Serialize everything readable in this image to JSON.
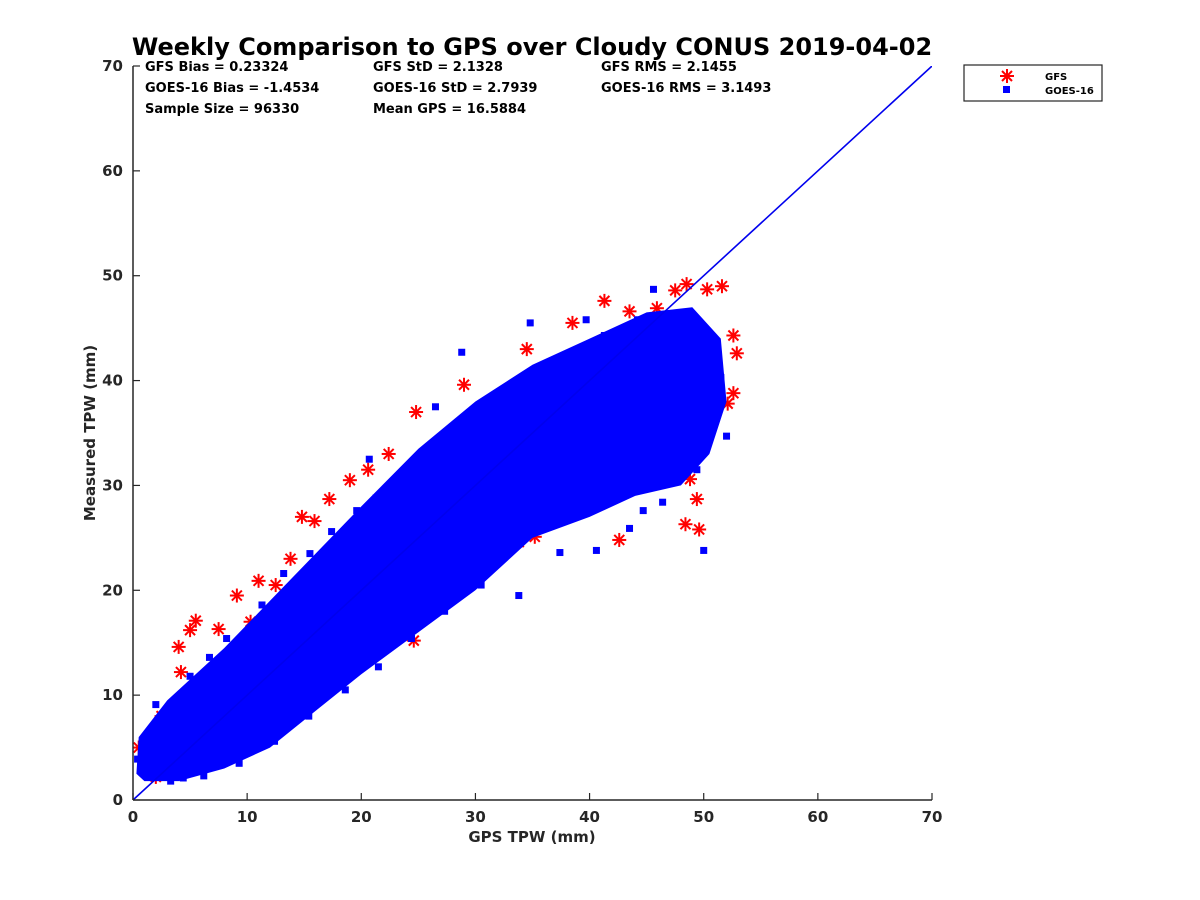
{
  "chart_data": {
    "type": "scatter",
    "title": "Weekly Comparison to GPS over Cloudy CONUS 2019-04-02",
    "xlabel": "GPS TPW (mm)",
    "ylabel": "Measured TPW (mm)",
    "xlim": [
      0,
      70
    ],
    "ylim": [
      0,
      70
    ],
    "xticks": [
      "0",
      "10",
      "20",
      "30",
      "40",
      "50",
      "60",
      "70"
    ],
    "yticks": [
      "0",
      "10",
      "20",
      "30",
      "40",
      "50",
      "60",
      "70"
    ],
    "grid": false,
    "legend_position": "outside top-right",
    "stats": {
      "gfs_bias": "GFS Bias = 0.23324",
      "goes_bias": "GOES-16 Bias = -1.4534",
      "sample_size": "Sample Size = 96330",
      "gfs_std": "GFS StD = 2.1328",
      "goes_std": "GOES-16 StD = 2.7939",
      "mean_gps": "Mean GPS = 16.5884",
      "gfs_rms": "GFS RMS = 2.1455",
      "goes_rms": "GOES-16 RMS = 3.1493"
    },
    "reference_line": {
      "x": [
        0,
        70
      ],
      "y": [
        0,
        70
      ],
      "color": "#0000ee"
    },
    "series": [
      {
        "name": "GFS",
        "marker": "asterisk",
        "color": "#ff0000",
        "points": [
          [
            0.5,
            5.0
          ],
          [
            1.2,
            5.6
          ],
          [
            2.5,
            8.0
          ],
          [
            4.0,
            14.6
          ],
          [
            4.2,
            12.2
          ],
          [
            5.0,
            16.2
          ],
          [
            5.5,
            17.1
          ],
          [
            7.5,
            16.3
          ],
          [
            9.1,
            19.5
          ],
          [
            10.3,
            17.0
          ],
          [
            11.0,
            20.9
          ],
          [
            12.5,
            20.5
          ],
          [
            13.8,
            23.0
          ],
          [
            14.8,
            27.0
          ],
          [
            15.9,
            26.6
          ],
          [
            17.2,
            28.7
          ],
          [
            19.0,
            30.5
          ],
          [
            20.6,
            31.5
          ],
          [
            22.4,
            33.0
          ],
          [
            24.8,
            37.0
          ],
          [
            29.0,
            39.6
          ],
          [
            34.5,
            43.0
          ],
          [
            38.5,
            45.5
          ],
          [
            41.3,
            47.6
          ],
          [
            43.5,
            46.6
          ],
          [
            45.9,
            46.9
          ],
          [
            47.5,
            48.6
          ],
          [
            48.5,
            49.2
          ],
          [
            50.3,
            48.7
          ],
          [
            51.6,
            49.0
          ],
          [
            52.6,
            44.3
          ],
          [
            52.9,
            42.6
          ],
          [
            52.6,
            38.8
          ],
          [
            52.1,
            37.8
          ],
          [
            50.0,
            33.8
          ],
          [
            48.8,
            30.6
          ],
          [
            48.4,
            26.3
          ],
          [
            49.6,
            25.8
          ],
          [
            49.4,
            28.7
          ],
          [
            42.6,
            24.8
          ],
          [
            33.8,
            24.6
          ],
          [
            35.2,
            25.1
          ],
          [
            26.6,
            21.5
          ],
          [
            24.5,
            20.3
          ],
          [
            22.0,
            18.2
          ],
          [
            18.5,
            14.6
          ],
          [
            24.6,
            15.2
          ],
          [
            12.0,
            10.4
          ],
          [
            8.0,
            6.4
          ],
          [
            2.0,
            2.2
          ],
          [
            4.5,
            3.0
          ],
          [
            3.3,
            2.6
          ],
          [
            30.0,
            23.8
          ],
          [
            45.0,
            36.0
          ],
          [
            47.2,
            37.2
          ],
          [
            15.5,
            21.0
          ],
          [
            27.3,
            33.6
          ],
          [
            37.0,
            36.8
          ],
          [
            40.5,
            41.5
          ],
          [
            44.1,
            40.2
          ],
          [
            46.5,
            42.6
          ]
        ]
      },
      {
        "name": "GOES-16",
        "marker": "square",
        "color": "#0000ff",
        "points": [
          [
            0.4,
            3.9
          ],
          [
            1.3,
            3.1
          ],
          [
            2.4,
            3.7
          ],
          [
            3.5,
            4.0
          ],
          [
            4.3,
            5.9
          ],
          [
            5.4,
            4.9
          ],
          [
            6.5,
            6.8
          ],
          [
            7.6,
            7.4
          ],
          [
            8.3,
            9.0
          ],
          [
            9.7,
            9.3
          ],
          [
            10.5,
            11.2
          ],
          [
            11.6,
            11.1
          ],
          [
            12.4,
            13.0
          ],
          [
            13.6,
            12.9
          ],
          [
            14.4,
            14.8
          ],
          [
            15.7,
            15.0
          ],
          [
            16.5,
            16.8
          ],
          [
            17.6,
            16.8
          ],
          [
            18.4,
            18.8
          ],
          [
            19.5,
            18.6
          ],
          [
            20.6,
            20.7
          ],
          [
            21.4,
            21.0
          ],
          [
            22.6,
            22.5
          ],
          [
            23.3,
            23.0
          ],
          [
            24.5,
            24.3
          ],
          [
            25.7,
            24.4
          ],
          [
            26.4,
            26.3
          ],
          [
            27.6,
            26.6
          ],
          [
            28.4,
            28.0
          ],
          [
            29.6,
            28.2
          ],
          [
            30.5,
            29.6
          ],
          [
            31.3,
            30.0
          ],
          [
            32.6,
            31.3
          ],
          [
            33.4,
            31.5
          ],
          [
            34.5,
            32.3
          ],
          [
            35.6,
            32.6
          ],
          [
            36.3,
            33.7
          ],
          [
            37.5,
            33.5
          ],
          [
            38.6,
            34.9
          ],
          [
            39.5,
            35.0
          ],
          [
            40.4,
            35.8
          ],
          [
            41.6,
            36.2
          ],
          [
            42.4,
            37.2
          ],
          [
            43.5,
            37.0
          ],
          [
            44.6,
            38.1
          ],
          [
            45.4,
            38.0
          ],
          [
            46.5,
            39.0
          ],
          [
            47.6,
            38.8
          ],
          [
            48.4,
            39.8
          ],
          [
            49.5,
            40.0
          ],
          [
            50.5,
            39.0
          ],
          [
            51.5,
            40.3
          ],
          [
            6.7,
            13.6
          ],
          [
            8.2,
            15.4
          ],
          [
            11.3,
            18.6
          ],
          [
            13.2,
            21.6
          ],
          [
            15.5,
            23.5
          ],
          [
            17.4,
            25.6
          ],
          [
            19.6,
            27.6
          ],
          [
            21.3,
            28.8
          ],
          [
            23.6,
            30.2
          ],
          [
            26.5,
            32.7
          ],
          [
            29.2,
            34.5
          ],
          [
            32.5,
            37.7
          ],
          [
            35.2,
            39.6
          ],
          [
            38.2,
            42.2
          ],
          [
            41.3,
            44.3
          ],
          [
            44.2,
            45.8
          ],
          [
            46.6,
            45.6
          ],
          [
            48.3,
            45.1
          ],
          [
            3.3,
            1.8
          ],
          [
            6.2,
            2.3
          ],
          [
            9.3,
            3.5
          ],
          [
            12.4,
            5.6
          ],
          [
            15.4,
            8.0
          ],
          [
            18.6,
            10.5
          ],
          [
            21.5,
            12.7
          ],
          [
            24.4,
            15.4
          ],
          [
            27.3,
            18.0
          ],
          [
            30.5,
            20.5
          ],
          [
            33.8,
            19.5
          ],
          [
            37.4,
            23.6
          ],
          [
            40.6,
            23.8
          ],
          [
            43.5,
            25.9
          ],
          [
            46.4,
            28.4
          ],
          [
            49.4,
            31.5
          ],
          [
            50.0,
            23.8
          ],
          [
            44.7,
            27.6
          ],
          [
            52.0,
            34.7
          ],
          [
            45.6,
            48.7
          ],
          [
            28.8,
            42.7
          ],
          [
            20.7,
            32.5
          ],
          [
            4.4,
            2.1
          ],
          [
            2.0,
            9.1
          ],
          [
            5.0,
            11.8
          ],
          [
            26.5,
            37.5
          ],
          [
            34.8,
            45.5
          ],
          [
            39.7,
            45.8
          ],
          [
            47.7,
            35.6
          ],
          [
            42.2,
            31.6
          ],
          [
            36.6,
            28.8
          ],
          [
            31.0,
            24.8
          ],
          [
            25.6,
            20.3
          ],
          [
            20.0,
            16.4
          ],
          [
            14.7,
            12.0
          ],
          [
            9.4,
            7.4
          ],
          [
            5.6,
            5.2
          ],
          [
            38.2,
            38.7
          ],
          [
            41.8,
            41.1
          ],
          [
            43.6,
            42.5
          ],
          [
            47.2,
            42.9
          ],
          [
            48.9,
            42.0
          ],
          [
            50.7,
            36.9
          ],
          [
            49.2,
            36.2
          ],
          [
            28.6,
            22.6
          ],
          [
            33.4,
            26.8
          ],
          [
            23.6,
            18.6
          ],
          [
            17.3,
            14.4
          ],
          [
            11.5,
            9.4
          ],
          [
            29.1,
            31.6
          ],
          [
            32.0,
            34.5
          ],
          [
            36.0,
            36.6
          ],
          [
            22.4,
            25.4
          ],
          [
            17.0,
            20.6
          ],
          [
            10.4,
            15.2
          ],
          [
            7.1,
            10.6
          ],
          [
            3.0,
            7.0
          ]
        ]
      }
    ]
  },
  "legend": {
    "items": [
      {
        "label": "GFS",
        "marker": "asterisk",
        "color": "#ff0000"
      },
      {
        "label": "GOES-16",
        "marker": "square",
        "color": "#0000ff"
      }
    ]
  }
}
